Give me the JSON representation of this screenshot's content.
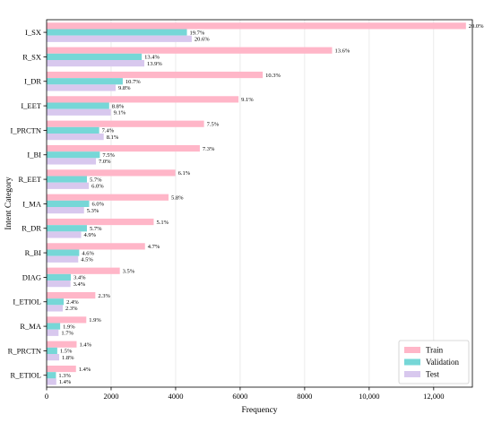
{
  "chart_data": {
    "type": "bar",
    "orientation": "horizontal",
    "xlabel": "Frequency",
    "ylabel": "Intent Category",
    "xlim": [
      0,
      13200
    ],
    "x_ticks": [
      0,
      2000,
      4000,
      6000,
      8000,
      10000,
      12000
    ],
    "x_tick_labels": [
      "0",
      "2000",
      "4000",
      "6000",
      "8000",
      "10,000",
      "12,000"
    ],
    "grid": "vertical",
    "legend_position": "bottom-right",
    "categories": [
      "I_SX",
      "R_SX",
      "I_DR",
      "I_EET",
      "I_PRCTN",
      "I_BI",
      "R_EET",
      "I_MA",
      "R_DR",
      "R_BI",
      "DIAG",
      "I_ETIOL",
      "R_MA",
      "R_PRCTN",
      "R_ETIOL"
    ],
    "series": [
      {
        "name": "Train",
        "color": "#ffb6c8",
        "values": [
          13000,
          8850,
          6700,
          5950,
          4880,
          4750,
          3990,
          3780,
          3320,
          3050,
          2270,
          1510,
          1230,
          930,
          910
        ],
        "labels": [
          "20.0%",
          "13.6%",
          "10.3%",
          "9.1%",
          "7.5%",
          "7.3%",
          "6.1%",
          "5.8%",
          "5.1%",
          "4.7%",
          "3.5%",
          "2.3%",
          "1.9%",
          "1.4%",
          "1.4%"
        ]
      },
      {
        "name": "Validation",
        "color": "#76d7d7",
        "values": [
          4350,
          2950,
          2360,
          1940,
          1630,
          1650,
          1250,
          1320,
          1250,
          1010,
          750,
          530,
          420,
          330,
          290
        ],
        "labels": [
          "19.7%",
          "13.4%",
          "10.7%",
          "8.8%",
          "7.4%",
          "7.5%",
          "5.7%",
          "6.0%",
          "5.7%",
          "4.6%",
          "3.4%",
          "2.4%",
          "1.9%",
          "1.5%",
          "1.3%"
        ]
      },
      {
        "name": "Test",
        "color": "#d8c8ee",
        "values": [
          4500,
          3030,
          2140,
          1990,
          1770,
          1530,
          1310,
          1160,
          1070,
          980,
          740,
          500,
          370,
          390,
          300
        ],
        "labels": [
          "20.6%",
          "13.9%",
          "9.8%",
          "9.1%",
          "8.1%",
          "7.0%",
          "6.0%",
          "5.3%",
          "4.9%",
          "4.5%",
          "3.4%",
          "2.3%",
          "1.7%",
          "1.8%",
          "1.4%"
        ]
      }
    ]
  }
}
